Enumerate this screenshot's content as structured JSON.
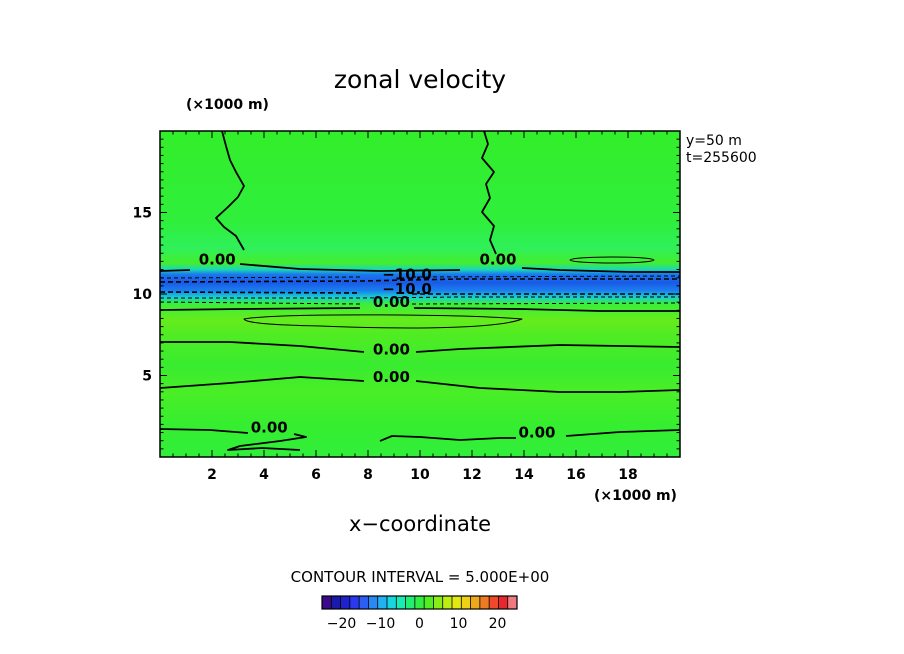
{
  "chart_data": {
    "type": "heatmap",
    "title": "zonal velocity",
    "xlabel": "x−coordinate",
    "x_unit": "(×1000 m)",
    "y_unit": "(×1000 m)",
    "xlim": [
      0,
      20
    ],
    "ylim": [
      0,
      20
    ],
    "x_ticks": [
      2,
      4,
      6,
      8,
      10,
      12,
      14,
      16,
      18
    ],
    "y_ticks": [
      5,
      10,
      15
    ],
    "info": [
      "y=50  m",
      "t=255600"
    ],
    "contour_interval_text": "CONTOUR INTERVAL = 5.000E+00",
    "colorbar": {
      "range": [
        -25,
        25
      ],
      "ticks": [
        -20,
        -10,
        0,
        10,
        20
      ],
      "tick_labels": [
        "−20",
        "−10",
        "0",
        "10",
        "20"
      ]
    },
    "contour_labels": [
      {
        "text": "0.00",
        "x": 2.2,
        "y": 11.8
      },
      {
        "text": "0.00",
        "x": 13.0,
        "y": 11.8
      },
      {
        "text": "−10.0",
        "x": 9.5,
        "y": 10.9
      },
      {
        "text": "−10.0",
        "x": 9.5,
        "y": 10.0
      },
      {
        "text": "0.00",
        "x": 8.9,
        "y": 9.2
      },
      {
        "text": "0.00",
        "x": 8.9,
        "y": 6.3
      },
      {
        "text": "0.00",
        "x": 8.9,
        "y": 4.6
      },
      {
        "text": "0.00",
        "x": 4.2,
        "y": 1.5
      },
      {
        "text": "0.00",
        "x": 14.5,
        "y": 1.2
      }
    ]
  }
}
